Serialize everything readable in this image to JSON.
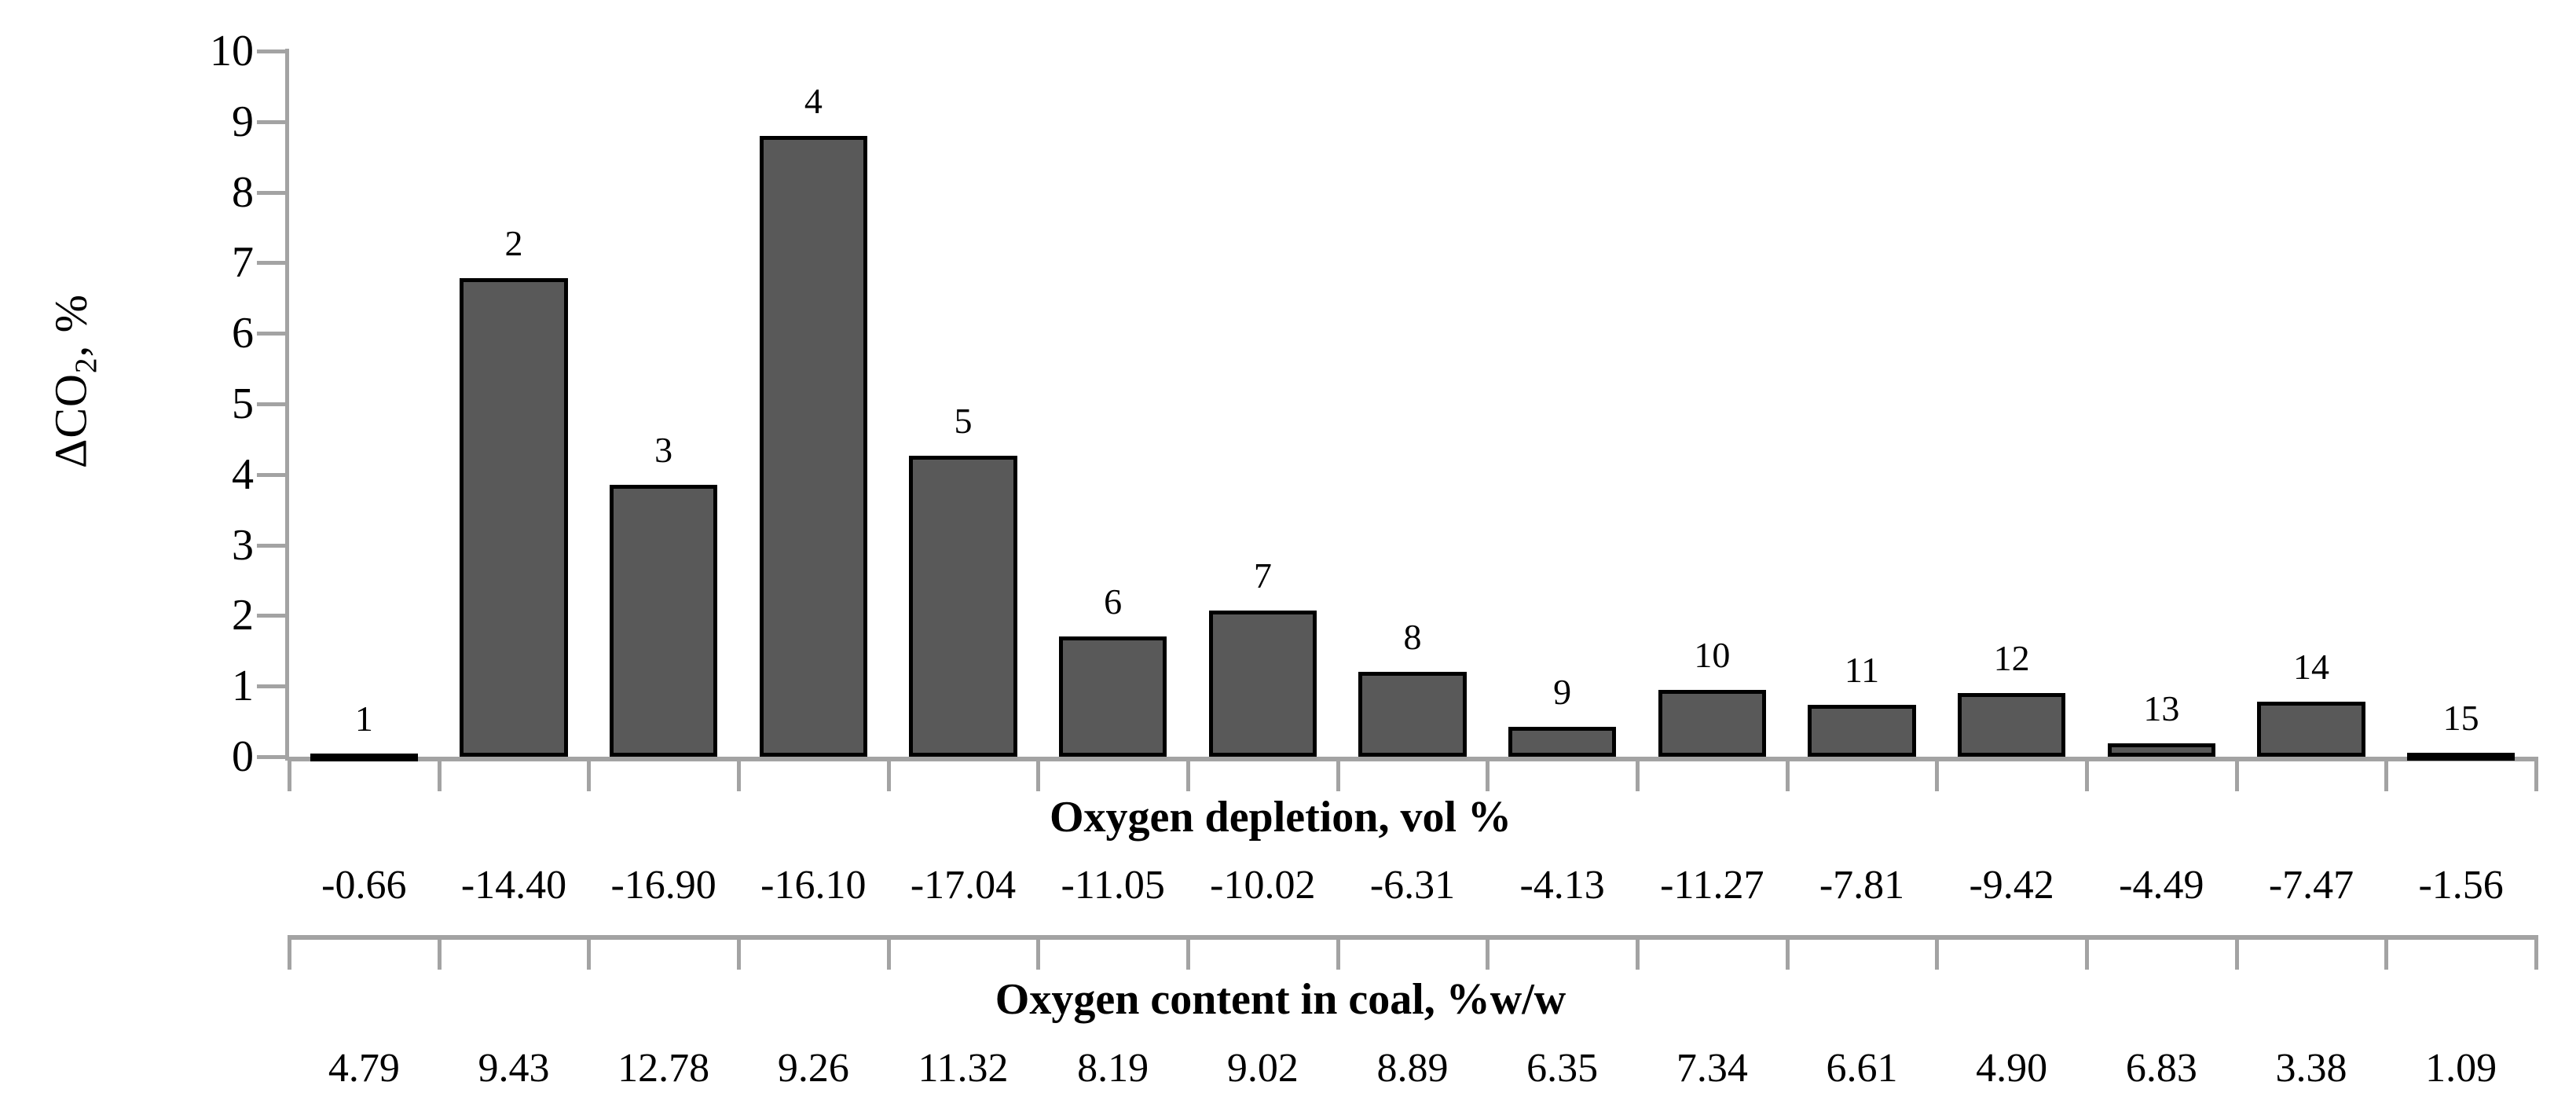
{
  "chart_data": {
    "type": "bar",
    "title": "",
    "ylabel": "ΔCO₂, %",
    "ylabel_parts": {
      "prefix": "ΔCO",
      "sub": "2",
      "suffix": ", %"
    },
    "ylim": [
      0,
      10
    ],
    "yticks": [
      0,
      1,
      2,
      3,
      4,
      5,
      6,
      7,
      8,
      9,
      10
    ],
    "categories": [
      "1",
      "2",
      "3",
      "4",
      "5",
      "6",
      "7",
      "8",
      "9",
      "10",
      "11",
      "12",
      "13",
      "14",
      "15"
    ],
    "values": [
      0.05,
      6.78,
      3.85,
      8.8,
      4.27,
      1.7,
      2.07,
      1.2,
      0.42,
      0.95,
      0.73,
      0.9,
      0.19,
      0.78,
      0.06
    ],
    "grid": false,
    "legend_position": "none",
    "x_axes": [
      {
        "title": "Oxygen depletion, vol %",
        "values": [
          "-0.66",
          "-14.40",
          "-16.90",
          "-16.10",
          "-17.04",
          "-11.05",
          "-10.02",
          "-6.31",
          "-4.13",
          "-11.27",
          "-7.81",
          "-9.42",
          "-4.49",
          "-7.47",
          "-1.56"
        ]
      },
      {
        "title": "Oxygen content in coal, %w/w",
        "values": [
          "4.79",
          "9.43",
          "12.78",
          "9.26",
          "11.32",
          "8.19",
          "9.02",
          "8.89",
          "6.35",
          "7.34",
          "6.61",
          "4.90",
          "6.83",
          "3.38",
          "1.09"
        ]
      }
    ]
  },
  "colors": {
    "bar_fill": "#595959",
    "bar_border": "#000000",
    "axis_line": "#a3a3a3",
    "text": "#000000"
  }
}
